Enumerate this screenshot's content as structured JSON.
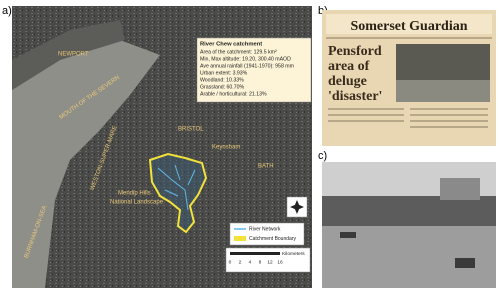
{
  "panels": {
    "a": "a)",
    "b": "b)",
    "c": "c)"
  },
  "map": {
    "places": {
      "newport": "NEWPORT",
      "severn": "MOUTH OF THE SEVERN",
      "weston": "WESTON-SUPER-MARE",
      "burnham": "BURNHAM-ON-SEA",
      "bristol": "BRISTOL",
      "keynsham": "Keynsham",
      "bath": "BATH",
      "mendip_1": "Mendip Hills",
      "mendip_2": "National Landscape"
    },
    "info": {
      "title": "River Chew catchment",
      "lines": [
        "Area of the catchment: 129.5 km²",
        "Min, Max altitude: 19.20, 300.40 mAOD",
        "Ave annual rainfall (1941-1970): 958 mm",
        "Urban extent: 3.93%",
        "Woodland: 10.33%",
        "Grassland: 60.70%",
        "Arable / horticultural: 21.13%"
      ]
    },
    "legend": {
      "river": "River Network",
      "boundary": "Catchment Boundary"
    },
    "scale": {
      "unit": "Kilometers",
      "ticks": [
        "0",
        "2",
        "4",
        "8",
        "12",
        "16"
      ]
    },
    "north": "N"
  },
  "newspaper": {
    "masthead": "Somerset Guardian",
    "headline_1": "Pensford",
    "headline_2": "area of",
    "headline_3": "deluge",
    "headline_4": "'disaster'"
  }
}
